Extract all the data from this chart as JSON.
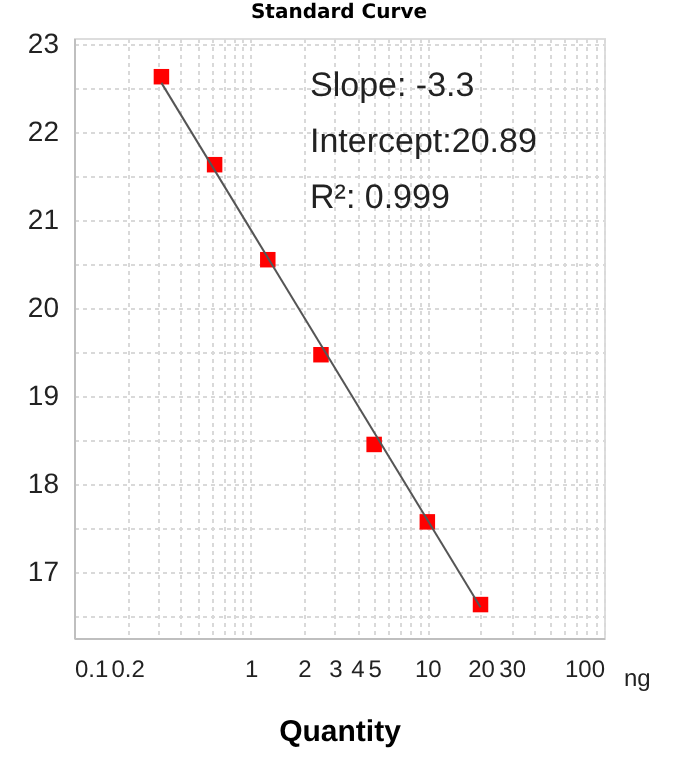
{
  "chart_data": {
    "type": "scatter",
    "title": "Standard Curve",
    "xlabel": "Quantity",
    "series": [
      {
        "color": "#ff0000",
        "marker": "square",
        "x": [
          0.3125,
          0.625,
          1.25,
          2.5,
          5,
          10,
          20
        ],
        "values": [
          22.63,
          21.63,
          20.55,
          19.47,
          18.45,
          17.57,
          16.63
        ]
      },
      {
        "type": "line",
        "color": "#555555",
        "marker": "none",
        "x": [
          0.3125,
          20
        ],
        "values": [
          22.56,
          16.6
        ]
      }
    ],
    "log": "x",
    "xlim": [
      0.1,
      100
    ],
    "ylim": [
      16.25,
      23.07
    ],
    "xticks": [
      0.1,
      0.2,
      {
        "value": 0.3,
        "label": null
      },
      {
        "value": 0.4,
        "label": null
      },
      {
        "value": 0.5,
        "label": null
      },
      {
        "value": 0.6,
        "label": null
      },
      {
        "value": 0.7,
        "label": null
      },
      {
        "value": 0.8,
        "label": null
      },
      {
        "value": 0.9,
        "label": null
      },
      1,
      2,
      3,
      4,
      5,
      {
        "value": 6,
        "label": null
      },
      {
        "value": 7,
        "label": null
      },
      {
        "value": 8,
        "label": null
      },
      {
        "value": 9,
        "label": null
      },
      10,
      20,
      30,
      {
        "value": 40,
        "label": null
      },
      {
        "value": 50,
        "label": null
      },
      {
        "value": 60,
        "label": null
      },
      {
        "value": 70,
        "label": null
      },
      {
        "value": 80,
        "label": null
      },
      {
        "value": 90,
        "label": null
      },
      100
    ],
    "yticks": [
      {
        "value": 16.5,
        "label": null
      },
      17,
      {
        "value": 17.5,
        "label": null
      },
      18,
      {
        "value": 18.5,
        "label": null
      },
      19,
      {
        "value": 19.5,
        "label": null
      },
      20,
      {
        "value": 20.5,
        "label": null
      },
      21,
      {
        "value": 21.5,
        "label": null
      },
      22,
      {
        "value": 22.5,
        "label": null
      },
      23
    ],
    "grid": true,
    "annotations": [
      "Slope: -3.3",
      "Intercept:20.89",
      "R²: 0.999",
      "ng"
    ]
  }
}
